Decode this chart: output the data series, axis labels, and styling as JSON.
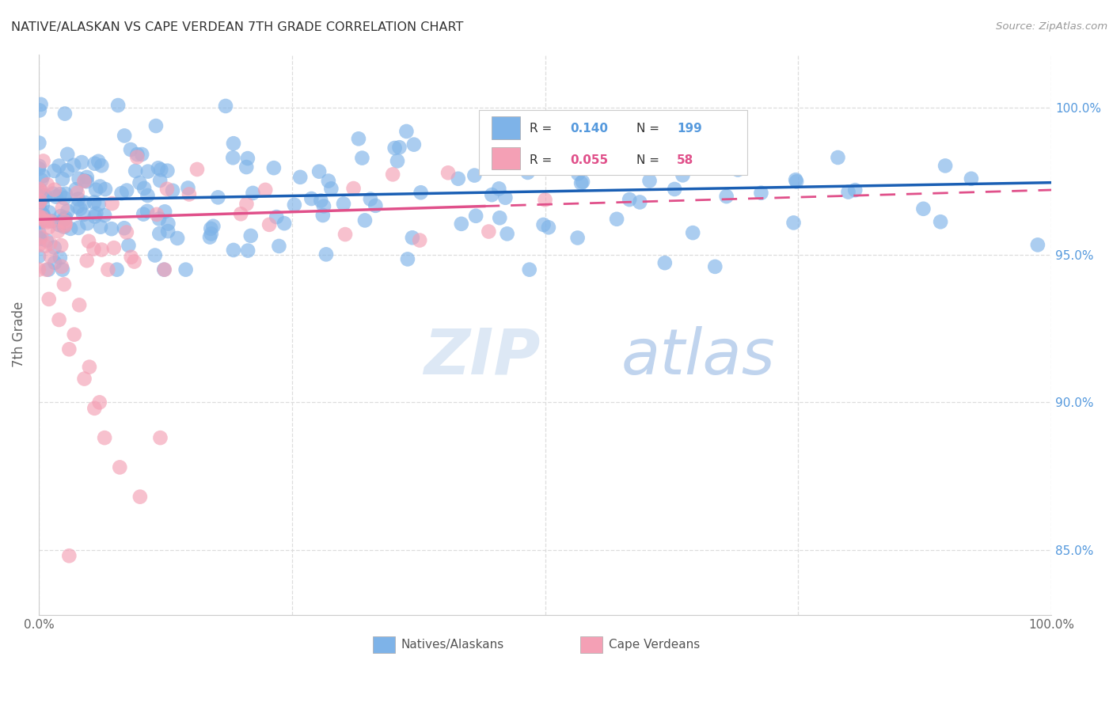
{
  "title": "NATIVE/ALASKAN VS CAPE VERDEAN 7TH GRADE CORRELATION CHART",
  "source": "Source: ZipAtlas.com",
  "ylabel": "7th Grade",
  "xlim": [
    0.0,
    1.0
  ],
  "ylim": [
    0.828,
    1.018
  ],
  "blue_color": "#7EB3E8",
  "pink_color": "#F4A0B5",
  "blue_line_color": "#1a5fb4",
  "pink_line_color": "#e0508a",
  "right_axis_color": "#5599dd",
  "watermark_zip_color": "#d0dff5",
  "watermark_atlas_color": "#b8cce8",
  "grid_color": "#dddddd",
  "legend_label_blue": "Natives/Alaskans",
  "legend_label_pink": "Cape Verdeans",
  "blue_trend_x0": 0.0,
  "blue_trend_x1": 1.0,
  "blue_trend_y0": 0.9685,
  "blue_trend_y1": 0.9745,
  "pink_trend_solid_x0": 0.0,
  "pink_trend_solid_x1": 0.44,
  "pink_trend_solid_y0": 0.962,
  "pink_trend_solid_y1": 0.9665,
  "pink_trend_dash_x0": 0.44,
  "pink_trend_dash_x1": 1.0,
  "pink_trend_dash_y0": 0.9665,
  "pink_trend_dash_y1": 0.972
}
